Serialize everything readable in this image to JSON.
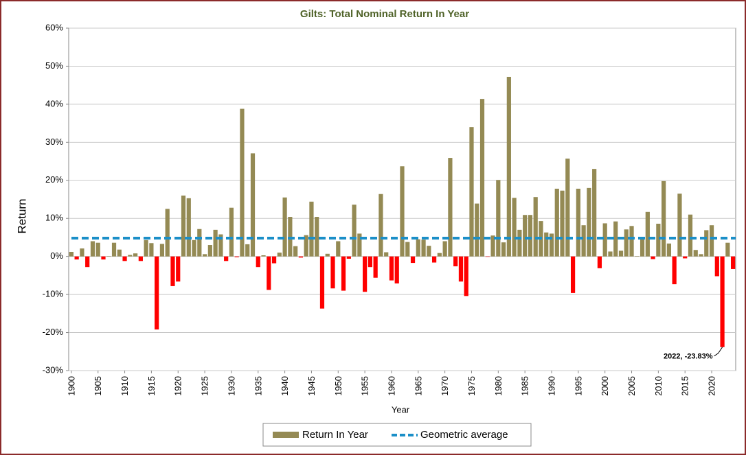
{
  "chart_data": {
    "type": "bar",
    "title": "Gilts: Total Nominal Return In Year",
    "x_label": "Year",
    "y_label": "Return",
    "x": [
      1900,
      1901,
      1902,
      1903,
      1904,
      1905,
      1906,
      1907,
      1908,
      1909,
      1910,
      1911,
      1912,
      1913,
      1914,
      1915,
      1916,
      1917,
      1918,
      1919,
      1920,
      1921,
      1922,
      1923,
      1924,
      1925,
      1926,
      1927,
      1928,
      1929,
      1930,
      1931,
      1932,
      1933,
      1934,
      1935,
      1936,
      1937,
      1938,
      1939,
      1940,
      1941,
      1942,
      1943,
      1944,
      1945,
      1946,
      1947,
      1948,
      1949,
      1950,
      1951,
      1952,
      1953,
      1954,
      1955,
      1956,
      1957,
      1958,
      1959,
      1960,
      1961,
      1962,
      1963,
      1964,
      1965,
      1966,
      1967,
      1968,
      1969,
      1970,
      1971,
      1972,
      1973,
      1974,
      1975,
      1976,
      1977,
      1978,
      1979,
      1980,
      1981,
      1982,
      1983,
      1984,
      1985,
      1986,
      1987,
      1988,
      1989,
      1990,
      1991,
      1992,
      1993,
      1994,
      1995,
      1996,
      1997,
      1998,
      1999,
      2000,
      2001,
      2002,
      2003,
      2004,
      2005,
      2006,
      2007,
      2008,
      2009,
      2010,
      2011,
      2012,
      2013,
      2014,
      2015,
      2016,
      2017,
      2018,
      2019,
      2020,
      2021,
      2022,
      2023,
      2024
    ],
    "series": [
      {
        "name": "Return In Year",
        "color": "#948a54",
        "negative_color": "#ff0000",
        "values": [
          1.2,
          -0.8,
          2.1,
          -2.8,
          4.0,
          3.6,
          -0.8,
          0.1,
          3.6,
          1.8,
          -1.2,
          0.4,
          0.8,
          -1.2,
          4.3,
          3.5,
          -19.2,
          3.3,
          12.5,
          -7.8,
          -6.6,
          16.0,
          15.3,
          4.3,
          7.2,
          0.6,
          3.0,
          7.0,
          5.8,
          -1.2,
          12.8,
          -0.2,
          38.8,
          3.2,
          27.1,
          -2.8,
          0.3,
          -8.8,
          -1.8,
          1.0,
          15.5,
          10.4,
          2.7,
          -0.3,
          5.6,
          14.4,
          10.4,
          -13.7,
          0.7,
          -8.4,
          4.0,
          -9.0,
          -0.6,
          13.6,
          6.0,
          -9.3,
          -2.8,
          -5.6,
          16.4,
          1.1,
          -6.3,
          -7.1,
          23.7,
          3.8,
          -1.7,
          4.5,
          4.4,
          2.8,
          -1.6,
          0.9,
          4.0,
          25.9,
          -2.6,
          -6.6,
          -10.4,
          34.0,
          13.9,
          41.4,
          -0.1,
          5.5,
          20.1,
          3.7,
          47.2,
          15.4,
          7.0,
          10.9,
          10.9,
          15.6,
          9.3,
          6.3,
          6.0,
          17.8,
          17.3,
          25.7,
          -9.6,
          17.8,
          8.2,
          18.0,
          23.0,
          -3.1,
          8.7,
          1.3,
          9.2,
          1.5,
          7.1,
          8.0,
          0.1,
          4.9,
          11.7,
          -0.7,
          8.6,
          19.8,
          3.4,
          -7.3,
          16.5,
          -0.5,
          11.0,
          1.7,
          0.6,
          6.9,
          8.2,
          -5.2,
          -23.83,
          3.6,
          -3.3
        ]
      }
    ],
    "average": {
      "name": "Geometric average",
      "value": 4.8,
      "color": "#1b8fc8"
    },
    "annotation": {
      "text": "2022, -23.83%",
      "index": 122
    },
    "xlim": [
      1899.5,
      2024.5
    ],
    "xticks": [
      1900,
      1905,
      1910,
      1915,
      1920,
      1925,
      1930,
      1935,
      1940,
      1945,
      1950,
      1955,
      1960,
      1965,
      1970,
      1975,
      1980,
      1985,
      1990,
      1995,
      2000,
      2005,
      2010,
      2015,
      2020
    ],
    "ylim": [
      -30,
      60
    ],
    "yticks": [
      {
        "value": -30,
        "label": "-30%"
      },
      {
        "value": -20,
        "label": "-20%"
      },
      {
        "value": -10,
        "label": "-10%"
      },
      {
        "value": 0,
        "label": "0%"
      },
      {
        "value": 10,
        "label": "10%"
      },
      {
        "value": 20,
        "label": "20%"
      },
      {
        "value": 30,
        "label": "30%"
      },
      {
        "value": 40,
        "label": "40%"
      },
      {
        "value": 50,
        "label": "50%"
      },
      {
        "value": 60,
        "label": "60%"
      }
    ],
    "grid": true,
    "legend": "bottom"
  }
}
